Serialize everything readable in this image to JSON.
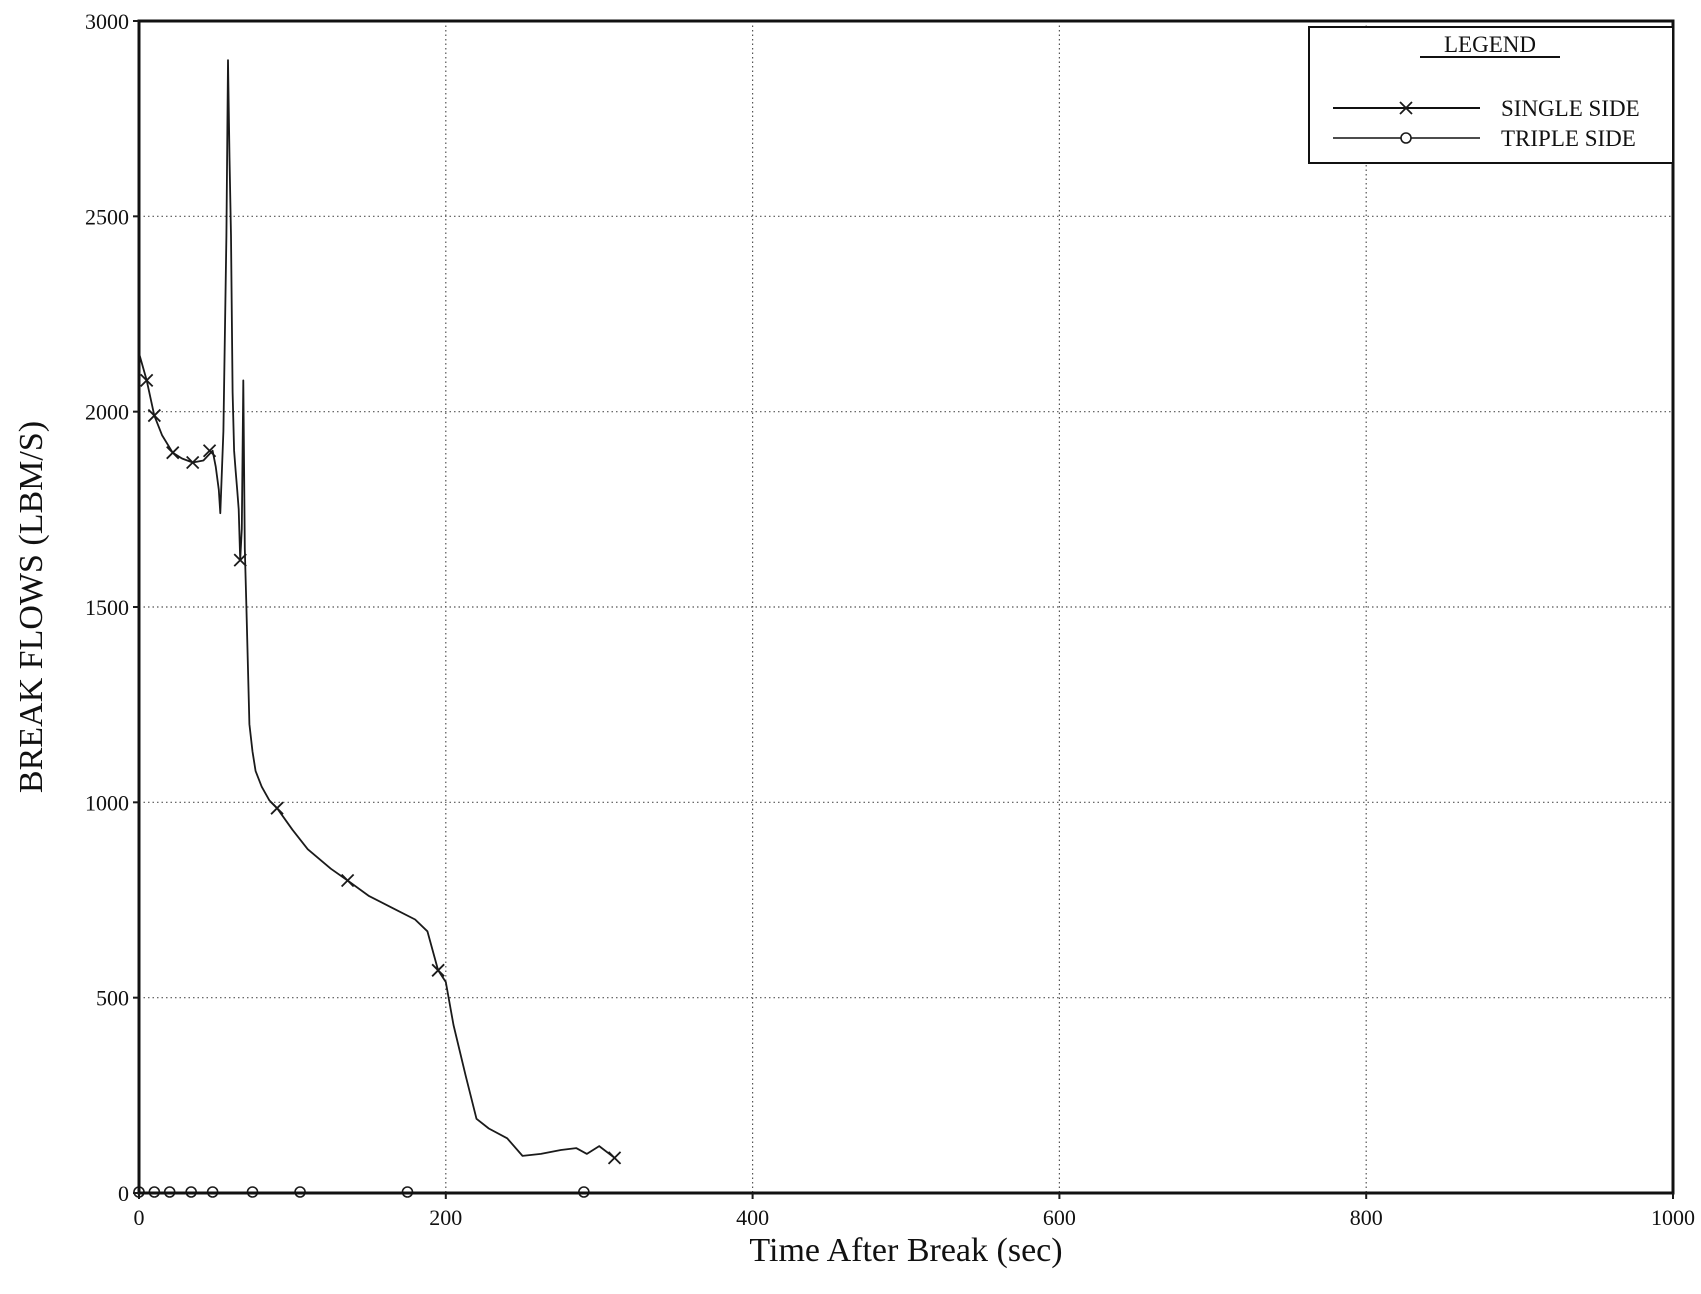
{
  "chart_data": {
    "type": "line",
    "xlabel": "Time After Break (sec)",
    "ylabel": "BREAK FLOWS (LBM/S)",
    "xlim": [
      0,
      1000
    ],
    "ylim": [
      0,
      3000
    ],
    "x_ticks": [
      0,
      200,
      400,
      600,
      800,
      1000
    ],
    "y_ticks": [
      0,
      500,
      1000,
      1500,
      2000,
      2500,
      3000
    ],
    "x_tick_labels": [
      "0",
      "200",
      "400",
      "600",
      "800",
      "1000"
    ],
    "y_tick_labels": [
      "0",
      "500",
      "1000",
      "1500",
      "2000",
      "2500",
      "3000"
    ],
    "grid": true,
    "legend": {
      "title": "LEGEND",
      "position": "top-right"
    },
    "series": [
      {
        "name": "SINGLE SIDE",
        "marker": "x",
        "x": [
          0,
          5,
          10,
          15,
          22,
          28,
          35,
          42,
          48,
          50,
          52,
          53,
          55,
          57,
          58,
          59,
          60,
          61,
          62,
          63,
          64,
          65,
          66,
          67,
          68,
          69,
          70,
          71,
          72,
          74,
          76,
          80,
          85,
          90,
          100,
          110,
          125,
          136,
          150,
          165,
          180,
          188,
          195,
          200,
          205,
          213,
          220,
          228,
          240,
          250,
          262,
          275,
          285,
          292,
          300,
          310
        ],
        "y": [
          2150,
          2080,
          1990,
          1940,
          1895,
          1880,
          1870,
          1875,
          1900,
          1860,
          1800,
          1740,
          1950,
          2450,
          2900,
          2650,
          2450,
          2050,
          1900,
          1850,
          1800,
          1750,
          1620,
          1700,
          2080,
          1650,
          1500,
          1350,
          1200,
          1130,
          1080,
          1040,
          1005,
          985,
          930,
          880,
          830,
          800,
          760,
          730,
          700,
          670,
          570,
          540,
          430,
          300,
          190,
          165,
          140,
          95,
          100,
          110,
          115,
          100,
          120,
          90
        ],
        "marker_x": [
          5,
          10,
          22,
          35,
          46,
          66,
          90,
          136,
          195,
          310
        ],
        "marker_y": [
          2080,
          1990,
          1895,
          1870,
          1900,
          1620,
          985,
          800,
          570,
          90
        ]
      },
      {
        "name": "TRIPLE SIDE",
        "marker": "o",
        "x": [
          0,
          10,
          20,
          34,
          48,
          74,
          105,
          175,
          290
        ],
        "y": [
          0,
          0,
          0,
          0,
          0,
          0,
          0,
          0,
          0
        ],
        "marker_x": [
          0,
          10,
          20,
          34,
          48,
          74,
          105,
          175,
          290
        ],
        "marker_y": [
          0,
          0,
          0,
          0,
          0,
          0,
          0,
          0,
          0
        ]
      }
    ]
  },
  "colors": {
    "line": "#1a1a1a",
    "grid": "#555555",
    "background": "#ffffff"
  }
}
